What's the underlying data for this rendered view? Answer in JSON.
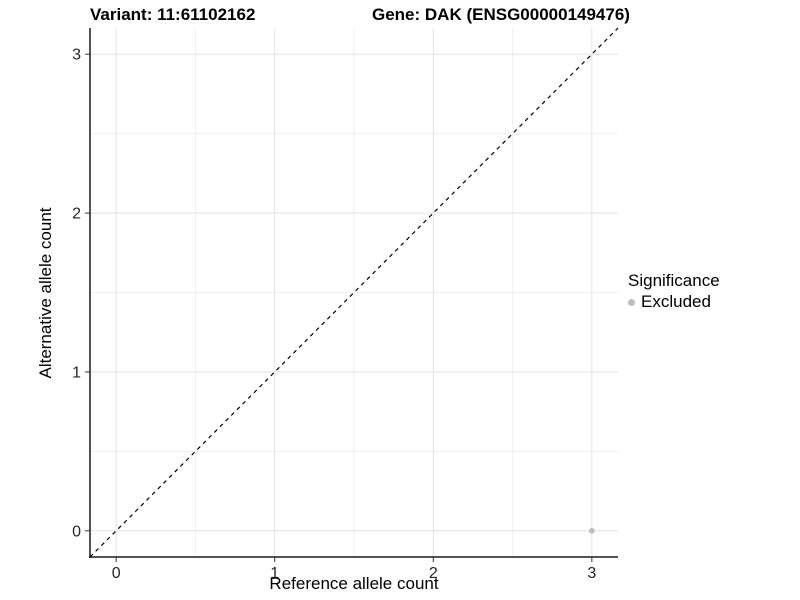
{
  "chart_data": {
    "type": "scatter",
    "title_left": "Variant: 11:61102162",
    "title_right": "Gene: DAK (ENSG00000149476)",
    "xlabel": "Reference allele count",
    "ylabel": "Alternative allele count",
    "xlim": [
      -0.165,
      3.165
    ],
    "ylim": [
      -0.165,
      3.165
    ],
    "x_ticks": [
      0,
      1,
      2,
      3
    ],
    "y_ticks": [
      0,
      1,
      2,
      3
    ],
    "x_minor_ticks": [
      0.5,
      1.5,
      2.5
    ],
    "y_minor_ticks": [
      0.5,
      1.5,
      2.5
    ],
    "grid": true,
    "series": [
      {
        "name": "Excluded",
        "color": "#bdbdbd",
        "points": [
          {
            "x": 3,
            "y": 0
          }
        ]
      }
    ],
    "reference_line": {
      "type": "identity",
      "style": "dashed",
      "color": "#000000"
    },
    "legend": {
      "title": "Significance",
      "position": "right",
      "items": [
        {
          "label": "Excluded",
          "color": "#bdbdbd"
        }
      ]
    }
  },
  "colors": {
    "background": "#ffffff",
    "grid_major": "#e3e3e3",
    "grid_minor": "#efefef",
    "axis_line": "#1a1a1a",
    "tick_mark": "#333333",
    "tick_label": "#262626"
  }
}
